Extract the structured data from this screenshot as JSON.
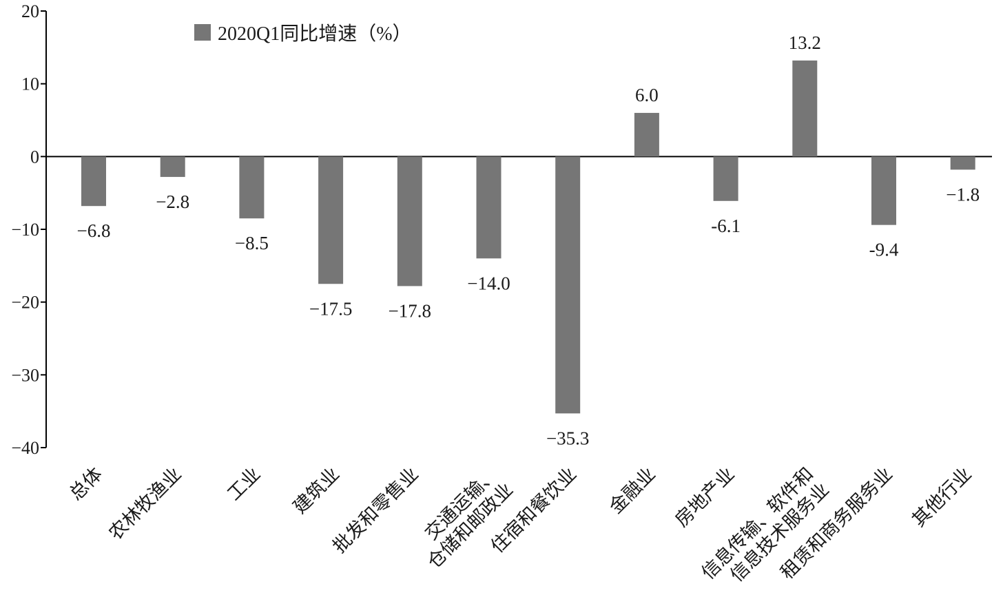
{
  "chart_data": {
    "type": "bar",
    "categories": [
      [
        "总体"
      ],
      [
        "农林牧渔业"
      ],
      [
        "工业"
      ],
      [
        "建筑业"
      ],
      [
        "批发和零售业"
      ],
      [
        "交通运输、",
        "仓储和邮政业"
      ],
      [
        "住宿和餐饮业"
      ],
      [
        "金融业"
      ],
      [
        "房地产业"
      ],
      [
        "信息传输、软件和",
        "信息技术服务业"
      ],
      [
        "租赁和商务服务业"
      ],
      [
        "其他行业"
      ]
    ],
    "series": [
      {
        "name": "2020Q1同比增速（%）",
        "values": [
          -6.8,
          -2.8,
          -8.5,
          -17.5,
          -17.8,
          -14.0,
          -35.3,
          6.0,
          -6.1,
          13.2,
          -9.4,
          -1.8
        ],
        "labels": [
          "−6.8",
          "−2.8",
          "−8.5",
          "−17.5",
          "−17.8",
          "−14.0",
          "−35.3",
          "6.0",
          "-6.1",
          "13.2",
          "-9.4",
          "−1.8"
        ],
        "color": "#767676"
      }
    ],
    "yticks": [
      20,
      10,
      0,
      -10,
      -20,
      -30,
      -40
    ],
    "ytick_labels": [
      "20",
      "10",
      "0",
      "−10",
      "−20",
      "−30",
      "−40"
    ],
    "ylim": [
      -40,
      20
    ],
    "legend_position": "top-left",
    "grid": false
  }
}
